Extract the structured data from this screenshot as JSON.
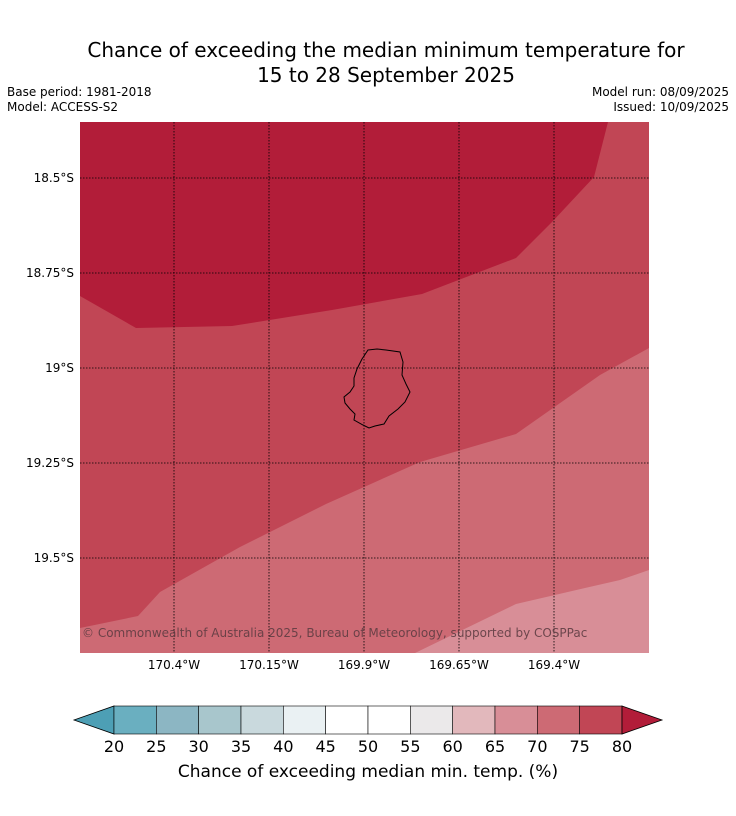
{
  "title_line1": "Chance of exceeding the median minimum temperature for",
  "title_line2": "15 to 28 September 2025",
  "base_period": "Base period: 1981-2018",
  "model": "Model: ACCESS-S2",
  "model_run": "Model run: 08/09/2025",
  "issued": "Issued: 10/09/2025",
  "copyright": "© Commonwealth of Australia 2025, Bureau of Meteorology, supported by COSPPac",
  "lat_labels": [
    "18.5°S",
    "18.75°S",
    "19°S",
    "19.25°S",
    "19.5°S"
  ],
  "lon_labels": [
    "170.4°W",
    "170.15°W",
    "169.9°W",
    "169.65°W",
    "169.4°W"
  ],
  "colorbar": {
    "ticks": [
      "20",
      "25",
      "30",
      "35",
      "40",
      "45",
      "50",
      "55",
      "60",
      "65",
      "70",
      "75",
      "80"
    ],
    "colors": [
      "#6aafc0",
      "#8cb6c3",
      "#a8c6cc",
      "#c9d9dd",
      "#eaf1f3",
      "#ffffff",
      "#ffffff",
      "#ebe9ea",
      "#e2b8bc",
      "#d88e97",
      "#cd6a74",
      "#c14655",
      "#b21d39"
    ],
    "under_color": "#4d9fb5",
    "over_color": "#b21d39",
    "label": "Chance of exceeding median min. temp. (%)"
  },
  "zones": {
    "band_80_plus": "#b21d39",
    "band_75_80": "#c14655",
    "band_70_75": "#cd6a74",
    "band_65_70": "#d88e97"
  }
}
